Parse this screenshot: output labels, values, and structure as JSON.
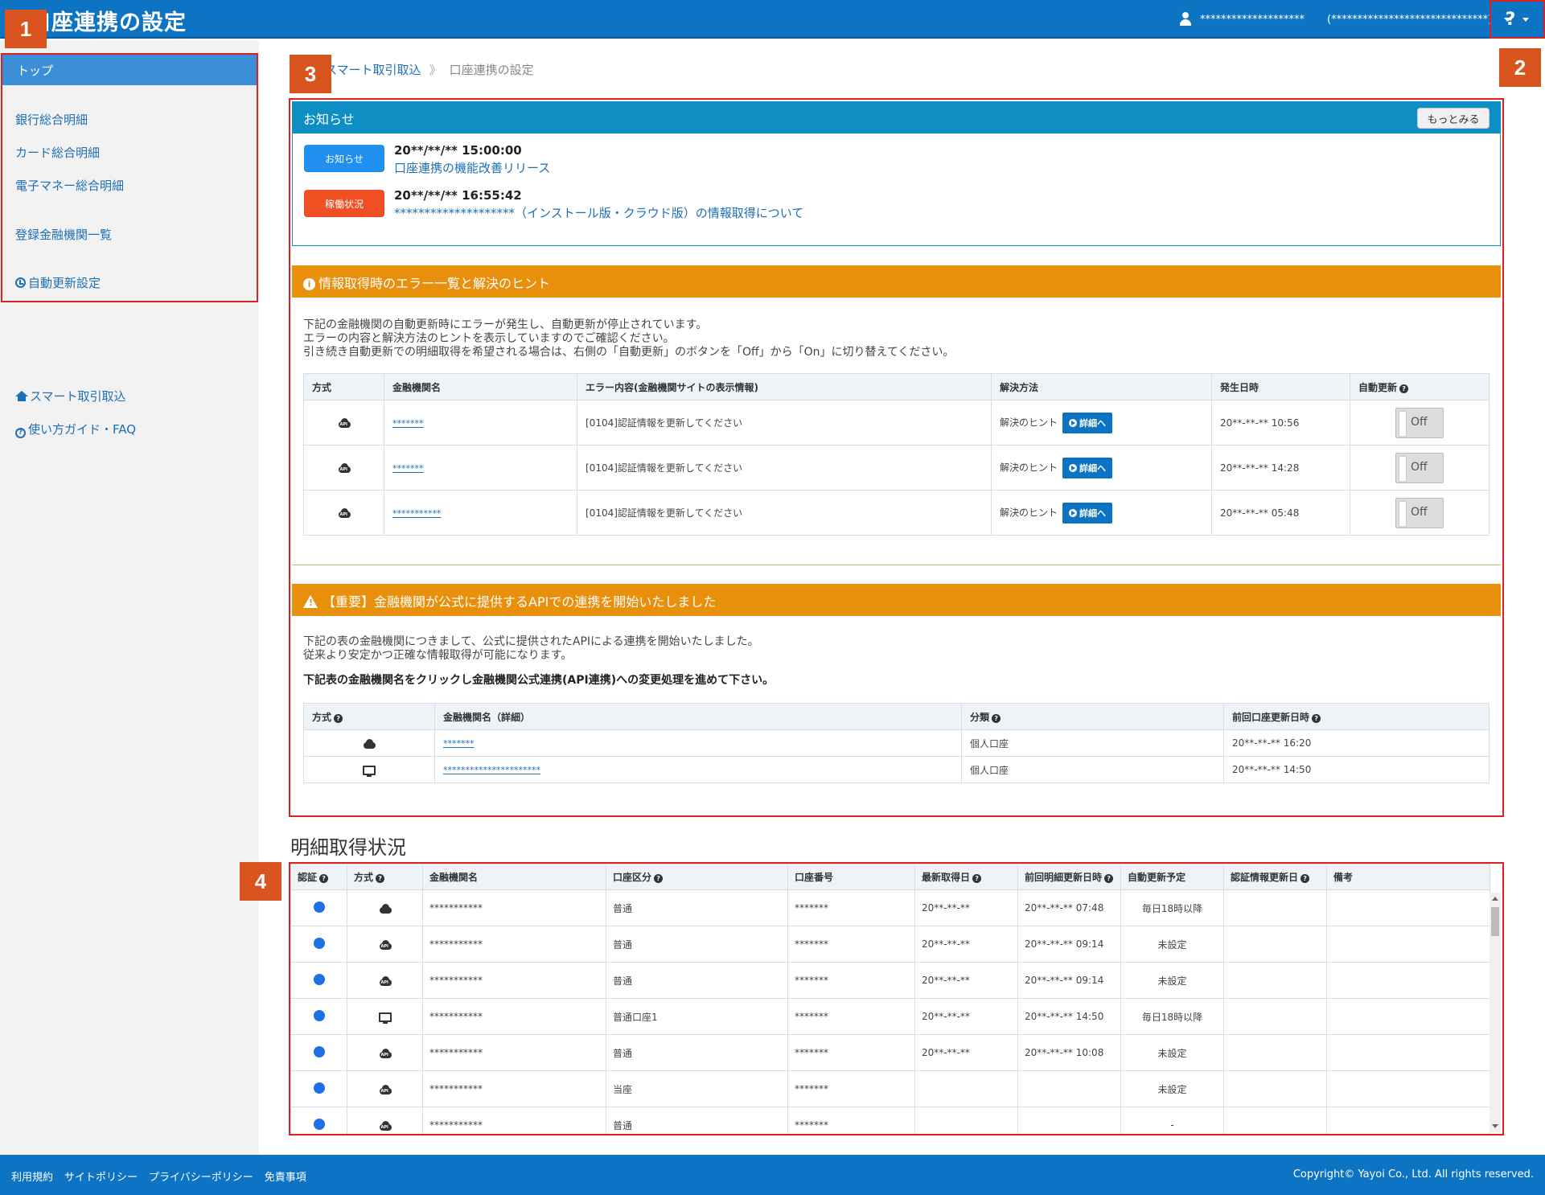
{
  "header": {
    "title": "口座連携の設定",
    "user_name": "********************",
    "user_extra": "(******************************)",
    "help_label": "?"
  },
  "badges": [
    "1",
    "2",
    "3",
    "4"
  ],
  "sidebar": {
    "top_label": "トップ",
    "items": [
      {
        "label": "銀行総合明細"
      },
      {
        "label": "カード総合明細"
      },
      {
        "label": "電子マネー総合明細"
      },
      {
        "label": "登録金融機関一覧"
      },
      {
        "label": "自動更新設定"
      }
    ],
    "links": [
      {
        "label": "スマート取引取込"
      },
      {
        "label": "使い方ガイド・FAQ"
      }
    ]
  },
  "breadcrumb": {
    "items": [
      "スマート取引取込",
      "口座連携の設定"
    ],
    "separator": "》"
  },
  "news": {
    "header": "お知らせ",
    "more_label": "もっとみる",
    "items": [
      {
        "tag": "お知らせ",
        "tag_color": "#1f8ff0",
        "datetime": "20**/**/** 15:00:00",
        "title": "口座連携の機能改善リリース"
      },
      {
        "tag": "稼働状況",
        "tag_color": "#f04e23",
        "datetime": "20**/**/** 16:55:42",
        "title": "********************（インストール版・クラウド版）の情報取得について"
      }
    ]
  },
  "errors": {
    "header": "情報取得時のエラー一覧と解決のヒント",
    "description": [
      "下記の金融機関の自動更新時にエラーが発生し、自動更新が停止されています。",
      "エラーの内容と解決方法のヒントを表示していますのでご確認ください。",
      "引き続き自動更新での明細取得を希望される場合は、右側の「自動更新」のボタンを「Off」から「On」に切り替えてください。"
    ],
    "columns": [
      "方式",
      "金融機関名",
      "エラー内容(金融機関サイトの表示情報)",
      "解決方法",
      "発生日時",
      "自動更新"
    ],
    "hint_label": "解決のヒント",
    "detail_label": "詳細へ",
    "toggle_label": "Off",
    "rows": [
      {
        "method_icon": "cloud-api-icon",
        "bank": "*******",
        "error": "[0104]認証情報を更新してください",
        "datetime": "20**-**-** 10:56"
      },
      {
        "method_icon": "cloud-api-icon",
        "bank": "*******",
        "error": "[0104]認証情報を更新してください",
        "datetime": "20**-**-** 14:28"
      },
      {
        "method_icon": "cloud-api-icon",
        "bank": "***********",
        "error": "[0104]認証情報を更新してください",
        "datetime": "20**-**-** 05:48"
      }
    ]
  },
  "api_notice": {
    "header": "【重要】金融機関が公式に提供するAPIでの連携を開始いたしました",
    "description": [
      "下記の表の金融機関につきまして、公式に提供されたAPIによる連携を開始いたしました。",
      "従来より安定かつ正確な情報取得が可能になります。"
    ],
    "bold_text": "下記表の金融機関名をクリックし金融機関公式連携(API連携)への変更処理を進めて下さい。",
    "columns": [
      "方式",
      "金融機関名（詳細）",
      "分類",
      "前回口座更新日時"
    ],
    "rows": [
      {
        "method_icon": "cloud-icon",
        "bank": "*******",
        "category": "個人口座",
        "datetime": "20**-**-** 16:20"
      },
      {
        "method_icon": "monitor-icon",
        "bank": "**********************",
        "category": "個人口座",
        "datetime": "20**-**-** 14:50"
      }
    ]
  },
  "status": {
    "title": "明細取得状況",
    "columns": [
      "認証",
      "方式",
      "金融機関名",
      "口座区分",
      "口座番号",
      "最新取得日",
      "前回明細更新日時",
      "自動更新予定",
      "認証情報更新日",
      "備考"
    ],
    "rows": [
      {
        "method_icon": "cloud-icon",
        "bank": "***********",
        "type": "普通",
        "number": "*******",
        "latest": "20**-**-**",
        "prev": "20**-**-** 07:48",
        "schedule": "毎日18時以降",
        "auth": "",
        "note": ""
      },
      {
        "method_icon": "cloud-api-icon",
        "bank": "***********",
        "type": "普通",
        "number": "*******",
        "latest": "20**-**-**",
        "prev": "20**-**-** 09:14",
        "schedule": "未設定",
        "auth": "",
        "note": ""
      },
      {
        "method_icon": "cloud-api-icon",
        "bank": "***********",
        "type": "普通",
        "number": "*******",
        "latest": "20**-**-**",
        "prev": "20**-**-** 09:14",
        "schedule": "未設定",
        "auth": "",
        "note": ""
      },
      {
        "method_icon": "monitor-icon",
        "bank": "***********",
        "type": "普通口座1",
        "number": "*******",
        "latest": "20**-**-**",
        "prev": "20**-**-** 14:50",
        "schedule": "毎日18時以降",
        "auth": "",
        "note": ""
      },
      {
        "method_icon": "cloud-api-icon",
        "bank": "***********",
        "type": "普通",
        "number": "*******",
        "latest": "20**-**-**",
        "prev": "20**-**-** 10:08",
        "schedule": "未設定",
        "auth": "",
        "note": ""
      },
      {
        "method_icon": "cloud-api-icon",
        "bank": "***********",
        "type": "当座",
        "number": "*******",
        "latest": "",
        "prev": "",
        "schedule": "未設定",
        "auth": "",
        "note": ""
      },
      {
        "method_icon": "cloud-api-icon",
        "bank": "***********",
        "type": "普通",
        "number": "*******",
        "latest": "",
        "prev": "",
        "schedule": "-",
        "auth": "",
        "note": ""
      }
    ]
  },
  "footer": {
    "links": [
      "利用規約",
      "サイトポリシー",
      "プライバシーポリシー",
      "免責事項"
    ],
    "copyright": "Copyright© Yayoi Co., Ltd. All rights reserved."
  }
}
